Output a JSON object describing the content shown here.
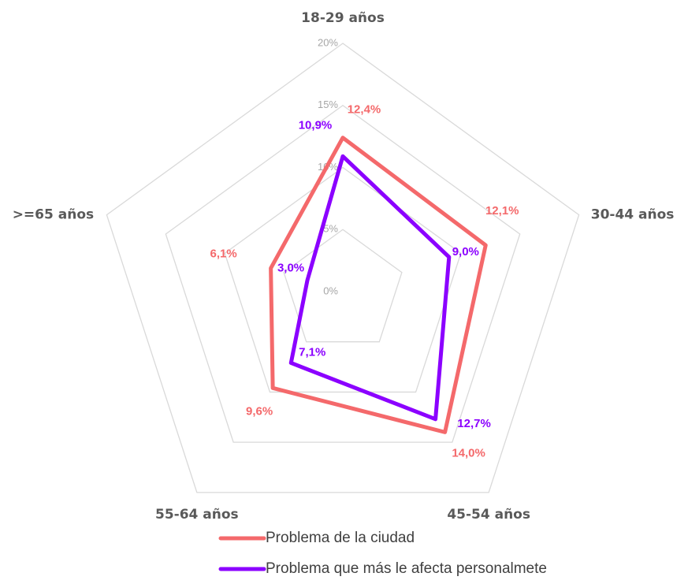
{
  "chart_data": {
    "type": "radar",
    "categories": [
      "18-29 años",
      "30-44 años",
      "45-54 años",
      "55-64 años",
      ">=65 años"
    ],
    "series": [
      {
        "name": "Problema de la ciudad",
        "color": "#f4696b",
        "values": [
          12.4,
          12.1,
          14.0,
          9.6,
          6.1
        ],
        "value_labels": [
          "12,4%",
          "12,1%",
          "14,0%",
          "9,6%",
          "6,1%"
        ]
      },
      {
        "name": "Problema que más le afecta personalmete",
        "color": "#8b00ff",
        "values": [
          10.9,
          9.0,
          12.7,
          7.1,
          3.0
        ],
        "value_labels": [
          "10,9%",
          "9,0%",
          "12,7%",
          "7,1%",
          "3,0%"
        ]
      }
    ],
    "rlim": [
      0,
      20
    ],
    "rticks": [
      {
        "value": 0,
        "label": "0%"
      },
      {
        "value": 5,
        "label": "5%"
      },
      {
        "value": 10,
        "label": "10%"
      },
      {
        "value": 15,
        "label": "15%"
      },
      {
        "value": 20,
        "label": "20%"
      }
    ],
    "grid": true,
    "legend": "bottom"
  }
}
